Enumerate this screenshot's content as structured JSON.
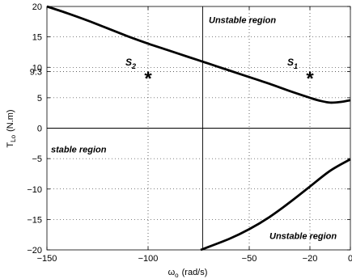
{
  "chart_data": {
    "type": "line",
    "xlabel": "ω",
    "xlabel_sub": "o",
    "xlabel_unit": "(rad/s)",
    "ylabel": "T",
    "ylabel_sub": "Lo",
    "ylabel_unit": "(N.m)",
    "xlim": [
      -150,
      0
    ],
    "ylim": [
      -20,
      20
    ],
    "xticks": [
      -150,
      -100,
      -50,
      -20,
      0
    ],
    "xtick_labels": [
      "−150",
      "−100",
      "−50",
      "−20",
      "0"
    ],
    "yticks": [
      -20,
      -15,
      -10,
      -5,
      0,
      5,
      9.3,
      10,
      15,
      20
    ],
    "ytick_labels": [
      "−20",
      "−15",
      "−10",
      "−5",
      "0",
      "5",
      "9.3",
      "10",
      "15",
      "20"
    ],
    "grid": true,
    "grid_style": "dotted",
    "series": [
      {
        "x": [
          -150,
          -140,
          -130,
          -120,
          -110,
          -100,
          -90,
          -80,
          -70,
          -60,
          -50,
          -40,
          -30,
          -20,
          -15,
          -10,
          -5,
          0
        ],
        "values": [
          20,
          18.9,
          17.7,
          16.4,
          15.1,
          13.9,
          12.8,
          11.7,
          10.6,
          9.5,
          8.4,
          7.3,
          6.1,
          5.0,
          4.5,
          4.2,
          4.3,
          4.6
        ],
        "color": "#000000"
      },
      {
        "x": [
          -74,
          -60,
          -50,
          -40,
          -30,
          -20,
          -10,
          0
        ],
        "values": [
          -20,
          -18.2,
          -16.6,
          -14.6,
          -12.2,
          -9.6,
          -7.0,
          -5.1
        ],
        "color": "#000000"
      }
    ],
    "vlines": [
      -73
    ],
    "hlines": [
      0
    ],
    "points": [
      {
        "name": "S",
        "sub": "2",
        "x": -100,
        "y": 8.7,
        "marker": "*"
      },
      {
        "name": "S",
        "sub": "1",
        "x": -20,
        "y": 8.7,
        "marker": "*"
      }
    ],
    "annotations": [
      {
        "text": "Unstable region",
        "x": -70,
        "y": 17.3
      },
      {
        "text": "stable region",
        "x": -148,
        "y": -4
      },
      {
        "text": "Unstable region",
        "x": -40,
        "y": -18.2
      }
    ]
  }
}
